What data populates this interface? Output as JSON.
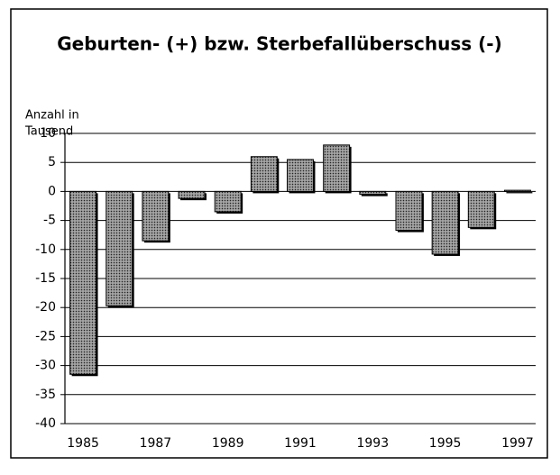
{
  "chart_data": {
    "type": "bar",
    "title": "Geburten- (+) bzw. Sterbefallüberschuss (-)",
    "y_label": [
      "Anzahl in",
      "Tausend"
    ],
    "categories": [
      "1985",
      null,
      "1987",
      null,
      "1989",
      null,
      "1991",
      null,
      "1993",
      null,
      "1995",
      null,
      "1997"
    ],
    "values": [
      -31.5,
      -19.7,
      -8.5,
      -1.2,
      -3.5,
      6,
      5.5,
      8,
      -0.5,
      -6.7,
      -10.8,
      -6.2,
      0.2
    ],
    "color": "#8a8a8a",
    "ylim": [
      -40,
      10
    ],
    "yticks": [
      10,
      5,
      0,
      -5,
      -10,
      -15,
      -20,
      -25,
      -30,
      -35,
      -40
    ],
    "grid": true
  }
}
